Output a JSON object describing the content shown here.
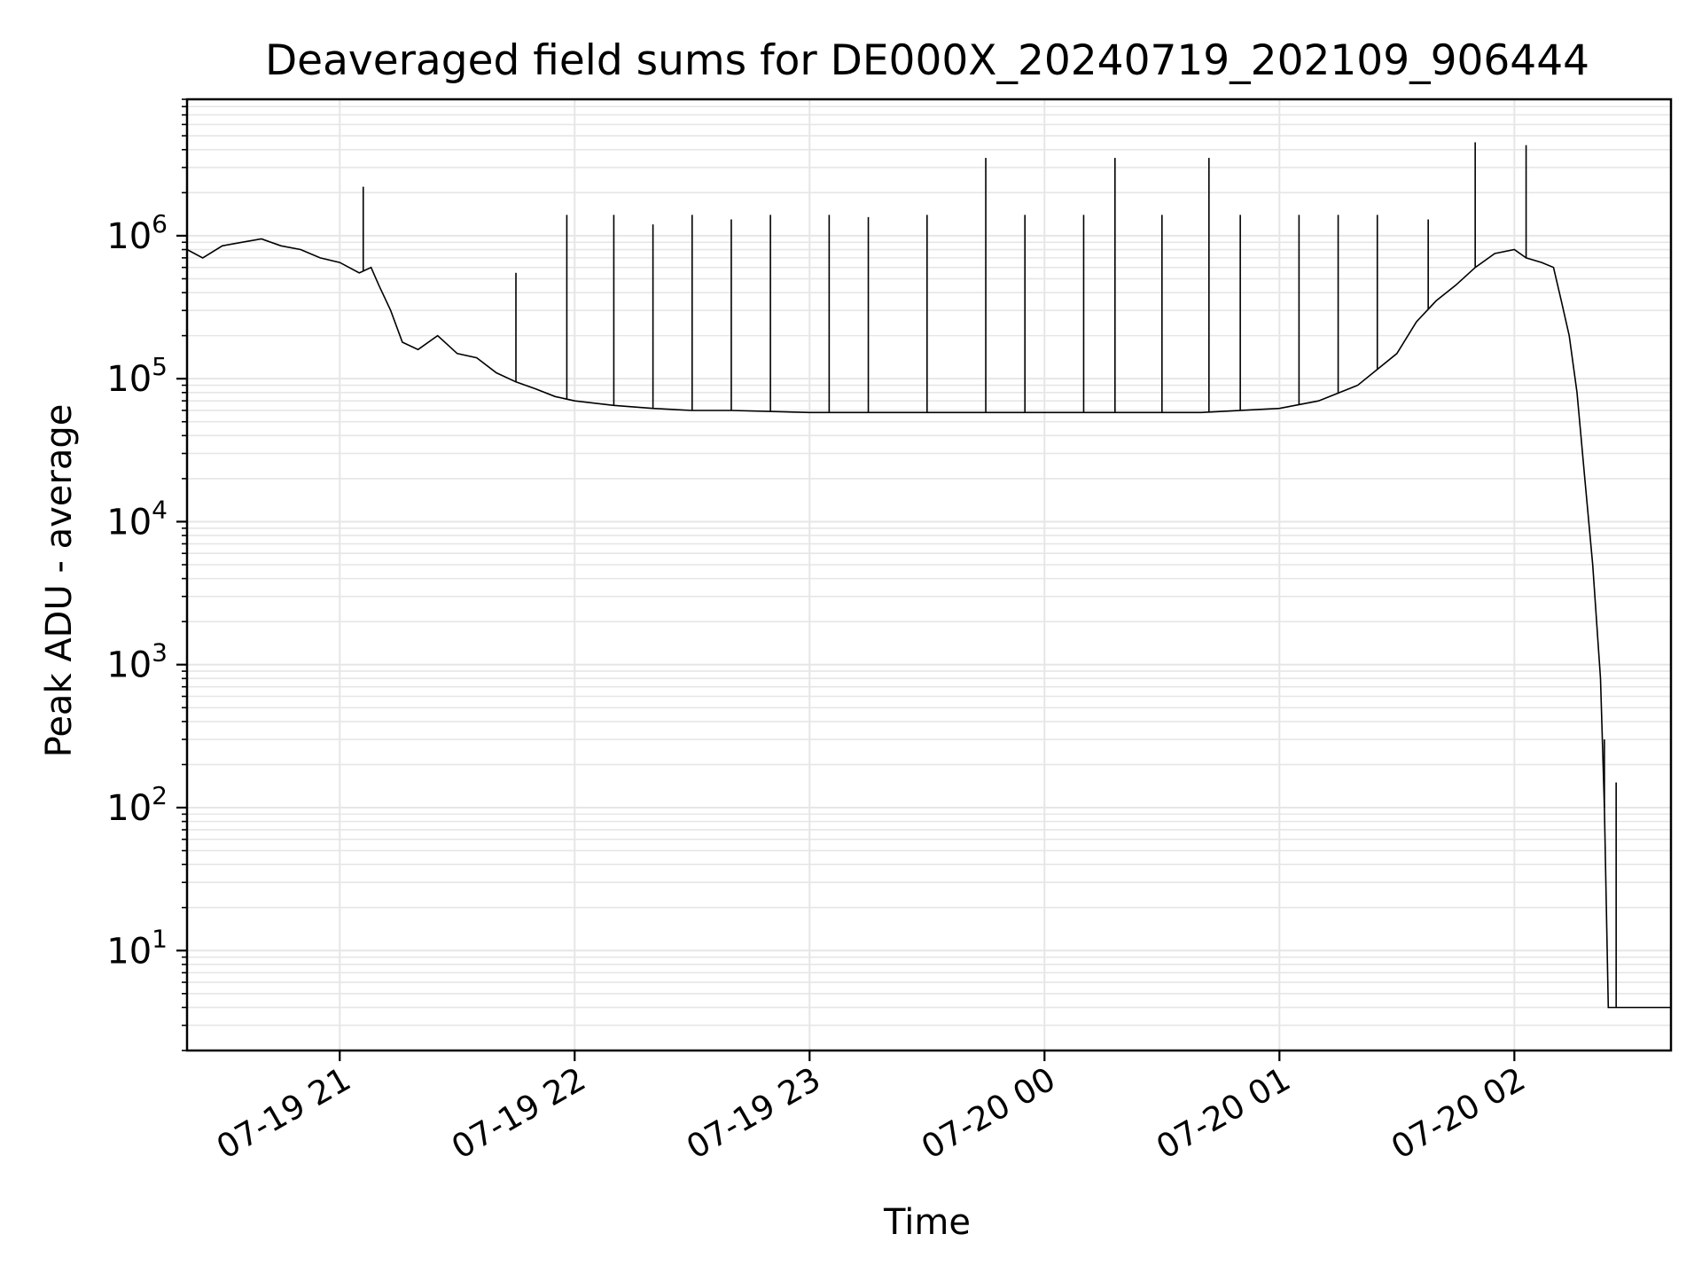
{
  "chart_data": {
    "type": "line",
    "title": "Deaveraged field sums for DE000X_20240719_202109_906444",
    "xlabel": "Time",
    "ylabel": "Peak ADU - average",
    "yscale": "log",
    "grid": true,
    "legend": "none",
    "line_color": "#000000",
    "grid_color": "#e6e6e6",
    "x_range": [
      "2024-07-19 20:21",
      "2024-07-20 02:40"
    ],
    "ylim": [
      2,
      9000000
    ],
    "x_ticks": [
      {
        "t": "2024-07-19 21:00",
        "label": "07-19 21"
      },
      {
        "t": "2024-07-19 22:00",
        "label": "07-19 22"
      },
      {
        "t": "2024-07-19 23:00",
        "label": "07-19 23"
      },
      {
        "t": "2024-07-20 00:00",
        "label": "07-20 00"
      },
      {
        "t": "2024-07-20 01:00",
        "label": "07-20 01"
      },
      {
        "t": "2024-07-20 02:00",
        "label": "07-20 02"
      }
    ],
    "y_ticks": [
      {
        "value": 10,
        "base": "10",
        "exp": "1"
      },
      {
        "value": 100,
        "base": "10",
        "exp": "2"
      },
      {
        "value": 1000,
        "base": "10",
        "exp": "3"
      },
      {
        "value": 10000,
        "base": "10",
        "exp": "4"
      },
      {
        "value": 100000,
        "base": "10",
        "exp": "5"
      },
      {
        "value": 1000000,
        "base": "10",
        "exp": "6"
      }
    ],
    "series": [
      {
        "points": [
          [
            "2024-07-19 20:21",
            800000
          ],
          [
            "2024-07-19 20:25",
            700000
          ],
          [
            "2024-07-19 20:30",
            850000
          ],
          [
            "2024-07-19 20:35",
            900000
          ],
          [
            "2024-07-19 20:40",
            950000
          ],
          [
            "2024-07-19 20:45",
            850000
          ],
          [
            "2024-07-19 20:50",
            800000
          ],
          [
            "2024-07-19 20:55",
            700000
          ],
          [
            "2024-07-19 21:00",
            650000
          ],
          [
            "2024-07-19 21:05",
            550000
          ],
          [
            "2024-07-19 21:08",
            600000
          ],
          [
            "2024-07-19 21:10",
            450000
          ],
          [
            "2024-07-19 21:13",
            300000
          ],
          [
            "2024-07-19 21:16",
            180000
          ],
          [
            "2024-07-19 21:20",
            160000
          ],
          [
            "2024-07-19 21:25",
            200000
          ],
          [
            "2024-07-19 21:30",
            150000
          ],
          [
            "2024-07-19 21:35",
            140000
          ],
          [
            "2024-07-19 21:40",
            110000
          ],
          [
            "2024-07-19 21:45",
            95000
          ],
          [
            "2024-07-19 21:50",
            85000
          ],
          [
            "2024-07-19 21:55",
            75000
          ],
          [
            "2024-07-19 22:00",
            70000
          ],
          [
            "2024-07-19 22:10",
            65000
          ],
          [
            "2024-07-19 22:20",
            62000
          ],
          [
            "2024-07-19 22:30",
            60000
          ],
          [
            "2024-07-19 22:40",
            60000
          ],
          [
            "2024-07-19 23:00",
            58000
          ],
          [
            "2024-07-19 23:20",
            58000
          ],
          [
            "2024-07-19 23:40",
            58000
          ],
          [
            "2024-07-20 00:00",
            58000
          ],
          [
            "2024-07-20 00:20",
            58000
          ],
          [
            "2024-07-20 00:40",
            58000
          ],
          [
            "2024-07-20 01:00",
            62000
          ],
          [
            "2024-07-20 01:10",
            70000
          ],
          [
            "2024-07-20 01:20",
            90000
          ],
          [
            "2024-07-20 01:30",
            150000
          ],
          [
            "2024-07-20 01:35",
            250000
          ],
          [
            "2024-07-20 01:40",
            350000
          ],
          [
            "2024-07-20 01:45",
            450000
          ],
          [
            "2024-07-20 01:50",
            600000
          ],
          [
            "2024-07-20 01:55",
            750000
          ],
          [
            "2024-07-20 02:00",
            800000
          ],
          [
            "2024-07-20 02:03",
            700000
          ],
          [
            "2024-07-20 02:07",
            650000
          ],
          [
            "2024-07-20 02:10",
            600000
          ],
          [
            "2024-07-20 02:12",
            350000
          ],
          [
            "2024-07-20 02:14",
            200000
          ],
          [
            "2024-07-20 02:16",
            80000
          ],
          [
            "2024-07-20 02:18",
            20000
          ],
          [
            "2024-07-20 02:20",
            5000
          ],
          [
            "2024-07-20 02:22",
            800
          ],
          [
            "2024-07-20 02:23",
            100
          ],
          [
            "2024-07-20 02:24",
            4
          ],
          [
            "2024-07-20 02:40",
            4
          ]
        ],
        "spikes": [
          [
            "2024-07-19 21:06",
            2200000
          ],
          [
            "2024-07-19 21:45",
            550000
          ],
          [
            "2024-07-19 21:58",
            1400000
          ],
          [
            "2024-07-19 22:10",
            1400000
          ],
          [
            "2024-07-19 22:20",
            1200000
          ],
          [
            "2024-07-19 22:30",
            1400000
          ],
          [
            "2024-07-19 22:40",
            1300000
          ],
          [
            "2024-07-19 22:50",
            1400000
          ],
          [
            "2024-07-19 23:05",
            1400000
          ],
          [
            "2024-07-19 23:15",
            1350000
          ],
          [
            "2024-07-19 23:30",
            1400000
          ],
          [
            "2024-07-19 23:45",
            3500000
          ],
          [
            "2024-07-19 23:55",
            1400000
          ],
          [
            "2024-07-20 00:10",
            1400000
          ],
          [
            "2024-07-20 00:18",
            3500000
          ],
          [
            "2024-07-20 00:30",
            1400000
          ],
          [
            "2024-07-20 00:42",
            3500000
          ],
          [
            "2024-07-20 00:50",
            1400000
          ],
          [
            "2024-07-20 01:05",
            1400000
          ],
          [
            "2024-07-20 01:15",
            1400000
          ],
          [
            "2024-07-20 01:25",
            1400000
          ],
          [
            "2024-07-20 01:38",
            1300000
          ],
          [
            "2024-07-20 01:50",
            4500000
          ],
          [
            "2024-07-20 02:03",
            4300000
          ],
          [
            "2024-07-20 02:23",
            300
          ],
          [
            "2024-07-20 02:26",
            150
          ]
        ]
      }
    ]
  }
}
